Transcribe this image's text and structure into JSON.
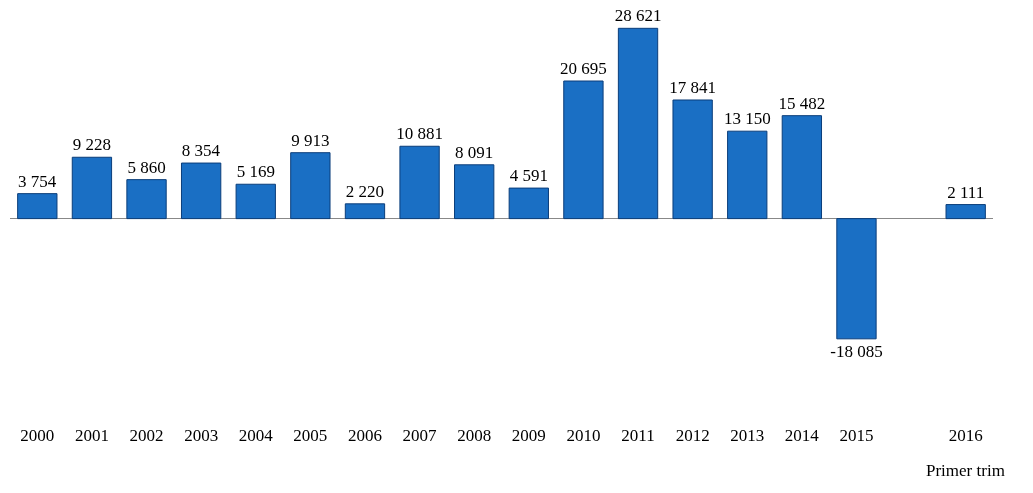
{
  "chart_data": {
    "type": "bar",
    "categories": [
      "2000",
      "2001",
      "2002",
      "2003",
      "2004",
      "2005",
      "2006",
      "2007",
      "2008",
      "2009",
      "2010",
      "2011",
      "2012",
      "2013",
      "2014",
      "2015",
      null,
      "2016"
    ],
    "values": [
      3754,
      9228,
      5860,
      8354,
      5169,
      9913,
      2220,
      10881,
      8091,
      4591,
      20695,
      28621,
      17841,
      13150,
      15482,
      -18085,
      null,
      2111
    ],
    "value_labels": [
      "3 754",
      "9 228",
      "5 860",
      "8 354",
      "5 169",
      "9 913",
      "2 220",
      "10 881",
      "8 091",
      "4 591",
      "20 695",
      "28 621",
      "17 841",
      "13 150",
      "15 482",
      "-18 085",
      null,
      "2 111"
    ],
    "color": "#1a6fc4",
    "tick_labels": "x",
    "annotations": [
      "Primer trim"
    ]
  }
}
